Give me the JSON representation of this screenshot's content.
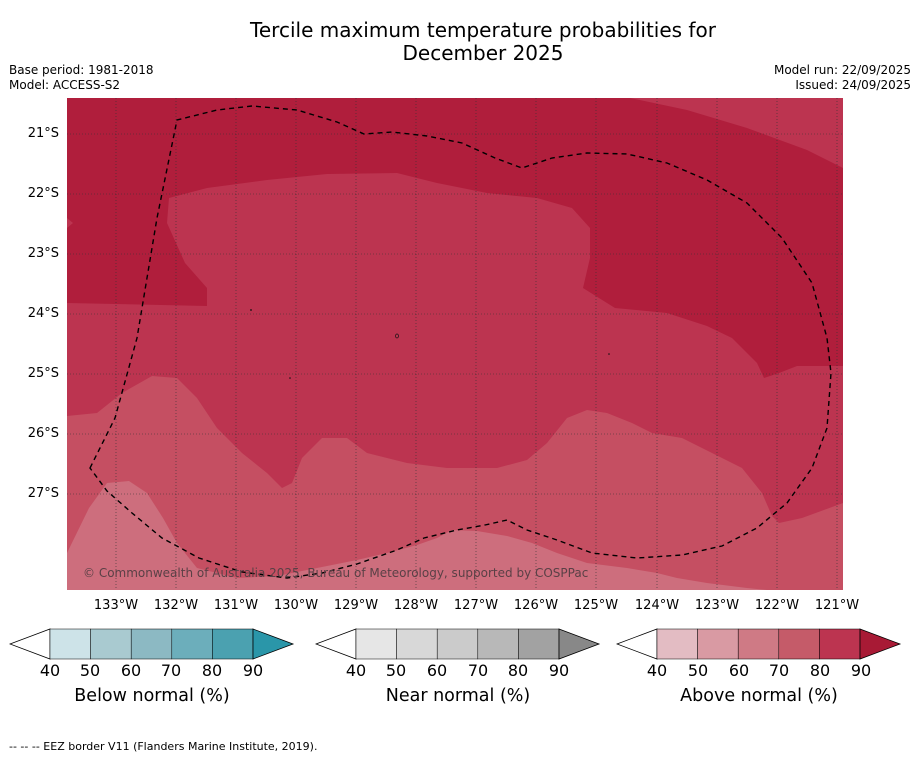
{
  "title_line1": "Tercile maximum temperature probabilities for",
  "title_line2": "December 2025",
  "meta_left": {
    "base_period": "Base period: 1981-2018",
    "model": "Model: ACCESS-S2"
  },
  "meta_right": {
    "model_run": "Model run: 22/09/2025",
    "issued": "Issued: 24/09/2025"
  },
  "map": {
    "lat_labels": [
      "21°S",
      "22°S",
      "23°S",
      "24°S",
      "25°S",
      "26°S",
      "27°S"
    ],
    "lon_labels": [
      "133°W",
      "132°W",
      "131°W",
      "130°W",
      "129°W",
      "128°W",
      "127°W",
      "126°W",
      "125°W",
      "124°W",
      "123°W",
      "122°W",
      "121°W"
    ],
    "copyright": "© Commonwealth of Australia 2025, Bureau of Meteorology, supported by COSPPac",
    "colors": {
      "above_90": "#b01e3c",
      "above_80": "#bc3450",
      "above_70": "#c54f62",
      "above_60": "#cd6e7d"
    }
  },
  "colorbars": [
    {
      "name": "below",
      "label": "Below normal (%)",
      "ticks": [
        "40",
        "50",
        "60",
        "70",
        "80",
        "90"
      ],
      "colors": [
        "#ffffff",
        "#cde3e8",
        "#a9cad0",
        "#8cb9c3",
        "#6caebb",
        "#4ba1b0",
        "#2a96a9"
      ]
    },
    {
      "name": "near",
      "label": "Near normal (%)",
      "ticks": [
        "40",
        "50",
        "60",
        "70",
        "80",
        "90"
      ],
      "colors": [
        "#ffffff",
        "#e6e6e6",
        "#d8d8d8",
        "#cbcbcb",
        "#b8b8b8",
        "#a2a2a2",
        "#888888"
      ]
    },
    {
      "name": "above",
      "label": "Above normal (%)",
      "ticks": [
        "40",
        "50",
        "60",
        "70",
        "80",
        "90"
      ],
      "colors": [
        "#ffffff",
        "#e3bcc3",
        "#d99aa3",
        "#cf7a85",
        "#c55b69",
        "#bc3450",
        "#a81a35"
      ]
    }
  ],
  "footer": "-- -- -- EEZ border V11 (Flanders Marine Institute, 2019)."
}
